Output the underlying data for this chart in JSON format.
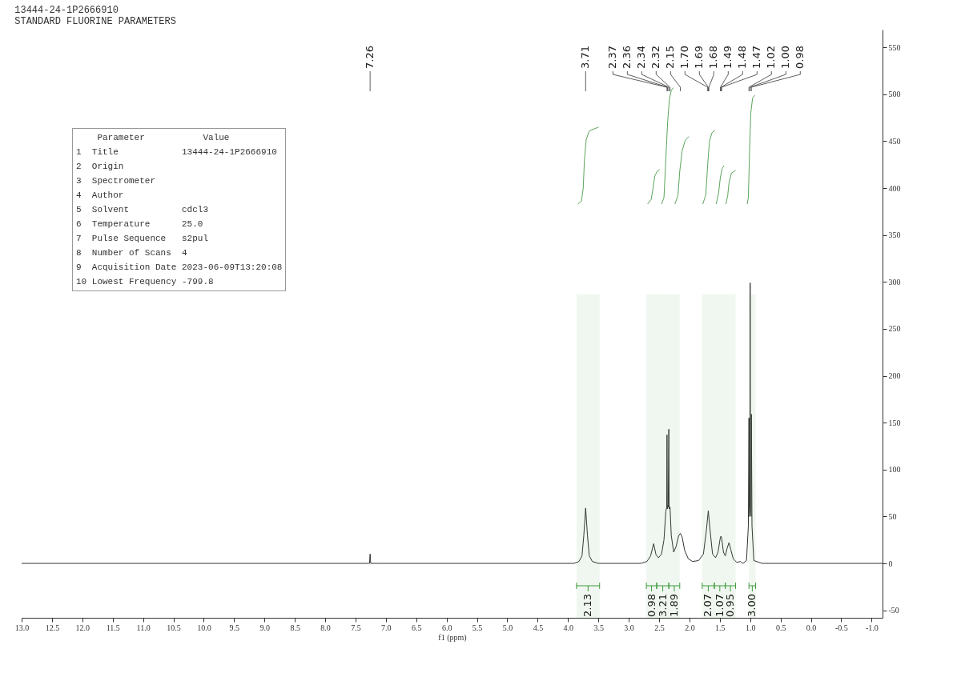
{
  "chart_data": {
    "type": "line",
    "title": "13444-24-1P2666910",
    "subtitle": "STANDARD FLUORINE PARAMETERS",
    "xlabel": "f1 (ppm)",
    "xlim": [
      13.0,
      -1.18
    ],
    "ylim": [
      -58,
      569
    ],
    "xticks": [
      {
        "value": 13,
        "label": "13.0"
      },
      {
        "value": 12.5,
        "label": "12.5"
      },
      {
        "value": 12,
        "label": "12.0"
      },
      {
        "value": 11.5,
        "label": "11.5"
      },
      {
        "value": 11,
        "label": "11.0"
      },
      {
        "value": 10.5,
        "label": "10.5"
      },
      {
        "value": 10,
        "label": "10.0"
      },
      {
        "value": 9.5,
        "label": "9.5"
      },
      {
        "value": 9,
        "label": "9.0"
      },
      {
        "value": 8.5,
        "label": "8.5"
      },
      {
        "value": 8,
        "label": "8.0"
      },
      {
        "value": 7.5,
        "label": "7.5"
      },
      {
        "value": 7,
        "label": "7.0"
      },
      {
        "value": 6.5,
        "label": "6.5"
      },
      {
        "value": 6,
        "label": "6.0"
      },
      {
        "value": 5.5,
        "label": "5.5"
      },
      {
        "value": 5,
        "label": "5.0"
      },
      {
        "value": 4.5,
        "label": "4.5"
      },
      {
        "value": 4,
        "label": "4.0"
      },
      {
        "value": 3.5,
        "label": "3.5"
      },
      {
        "value": 3,
        "label": "3.0"
      },
      {
        "value": 2.5,
        "label": "2.5"
      },
      {
        "value": 2,
        "label": "2.0"
      },
      {
        "value": 1.5,
        "label": "1.5"
      },
      {
        "value": 1,
        "label": "1.0"
      },
      {
        "value": 0.5,
        "label": "0.5"
      },
      {
        "value": 0,
        "label": "0.0"
      },
      {
        "value": -0.5,
        "label": "-0.5"
      },
      {
        "value": -1,
        "label": "-1.0"
      }
    ],
    "yticks": [
      -50,
      0,
      50,
      100,
      150,
      200,
      250,
      300,
      350,
      400,
      450,
      500,
      550
    ],
    "series": [
      {
        "color": "#333333",
        "x": [
          13.0,
          7.4,
          7.27,
          7.26,
          7.25,
          7.1,
          3.9,
          3.82,
          3.77,
          3.74,
          3.71,
          3.68,
          3.65,
          3.6,
          3.5,
          2.8,
          2.7,
          2.64,
          2.59,
          2.55,
          2.51,
          2.46,
          2.42,
          2.39,
          2.375,
          2.37,
          2.365,
          2.355,
          2.35,
          2.34,
          2.335,
          2.32,
          2.3,
          2.26,
          2.22,
          2.18,
          2.15,
          2.12,
          2.08,
          2.02,
          1.95,
          1.85,
          1.77,
          1.72,
          1.69,
          1.66,
          1.62,
          1.57,
          1.53,
          1.5,
          1.49,
          1.48,
          1.47,
          1.44,
          1.41,
          1.38,
          1.35,
          1.32,
          1.28,
          1.22,
          1.16,
          1.12,
          1.06,
          1.03,
          1.02,
          1.015,
          1.005,
          1.0,
          0.995,
          0.985,
          0.98,
          0.97,
          0.94,
          0.85,
          0.8,
          -1.18
        ],
        "values": [
          0,
          0,
          0,
          10,
          0,
          0,
          0,
          2,
          8,
          30,
          59,
          30,
          8,
          2,
          0,
          0,
          2,
          8,
          21,
          9,
          6,
          10,
          25,
          55,
          60,
          137,
          58,
          62,
          60,
          143,
          58,
          60,
          30,
          12,
          18,
          29,
          32,
          28,
          14,
          5,
          2,
          3,
          10,
          36,
          56,
          35,
          10,
          6,
          12,
          24,
          28,
          29,
          27,
          12,
          8,
          16,
          22,
          15,
          5,
          1,
          2,
          0,
          3,
          40,
          155,
          50,
          60,
          299,
          60,
          50,
          159,
          40,
          3,
          1,
          0,
          0
        ]
      },
      {
        "color": "#5aa55a",
        "x": [
          3.84,
          3.78,
          3.75,
          3.73,
          3.7,
          3.65,
          3.5
        ],
        "values": [
          383,
          386,
          400,
          430,
          452,
          461,
          465
        ]
      },
      {
        "color": "#5aa55a",
        "x": [
          2.69,
          2.63,
          2.6,
          2.57,
          2.53,
          2.49
        ],
        "values": [
          383,
          388,
          400,
          413,
          418,
          420
        ]
      },
      {
        "color": "#5aa55a",
        "x": [
          2.46,
          2.42,
          2.39,
          2.36,
          2.33,
          2.3,
          2.27
        ],
        "values": [
          383,
          390,
          430,
          470,
          495,
          504,
          507
        ]
      },
      {
        "color": "#5aa55a",
        "x": [
          2.24,
          2.19,
          2.16,
          2.12,
          2.07,
          2.01
        ],
        "values": [
          383,
          392,
          418,
          440,
          451,
          455
        ]
      },
      {
        "color": "#5aa55a",
        "x": [
          1.78,
          1.73,
          1.7,
          1.67,
          1.63,
          1.58
        ],
        "values": [
          383,
          393,
          425,
          450,
          459,
          462
        ]
      },
      {
        "color": "#5aa55a",
        "x": [
          1.56,
          1.52,
          1.49,
          1.46,
          1.43
        ],
        "values": [
          383,
          395,
          412,
          421,
          424
        ]
      },
      {
        "color": "#5aa55a",
        "x": [
          1.4,
          1.37,
          1.35,
          1.31,
          1.24
        ],
        "values": [
          383,
          392,
          405,
          416,
          419
        ]
      },
      {
        "color": "#5aa55a",
        "x": [
          1.05,
          1.03,
          1.01,
          0.99,
          0.96,
          0.92
        ],
        "values": [
          383,
          390,
          440,
          480,
          496,
          499
        ]
      }
    ],
    "bands": [
      {
        "axis": "x",
        "from": 3.86,
        "to": 3.48,
        "label": "2.13",
        "color": "#3c9a3c"
      },
      {
        "axis": "x",
        "from": 2.71,
        "to": 2.54,
        "label": "0.98",
        "color": "#3c9a3c"
      },
      {
        "axis": "x",
        "from": 2.54,
        "to": 2.34,
        "label": "3.21",
        "color": "#3c9a3c"
      },
      {
        "axis": "x",
        "from": 2.34,
        "to": 2.16,
        "label": "1.89",
        "color": "#3c9a3c"
      },
      {
        "axis": "x",
        "from": 1.79,
        "to": 1.59,
        "label": "2.07",
        "color": "#3c9a3c"
      },
      {
        "axis": "x",
        "from": 1.59,
        "to": 1.41,
        "label": "1.07",
        "color": "#3c9a3c"
      },
      {
        "axis": "x",
        "from": 1.41,
        "to": 1.24,
        "label": "0.95",
        "color": "#3c9a3c"
      },
      {
        "axis": "x",
        "from": 1.02,
        "to": 0.91,
        "label": "3.00",
        "color": "#3c9a3c"
      }
    ],
    "annotations": [
      {
        "text": "7.26",
        "x": 7.26
      },
      {
        "text": "3.71",
        "x": 3.71
      },
      {
        "text": "2.37",
        "x": 2.37
      },
      {
        "text": "2.36",
        "x": 2.36
      },
      {
        "text": "2.34",
        "x": 2.34
      },
      {
        "text": "2.32",
        "x": 2.32
      },
      {
        "text": "2.15",
        "x": 2.15
      },
      {
        "text": "1.70",
        "x": 1.7
      },
      {
        "text": "1.69",
        "x": 1.69
      },
      {
        "text": "1.68",
        "x": 1.68
      },
      {
        "text": "1.49",
        "x": 1.49
      },
      {
        "text": "1.48",
        "x": 1.48
      },
      {
        "text": "1.47",
        "x": 1.47
      },
      {
        "text": "1.02",
        "x": 1.02
      },
      {
        "text": "1.00",
        "x": 1.0
      },
      {
        "text": "0.98",
        "x": 0.98
      },
      "    Parameter           Value",
      "1  Title            13444-24-1P2666910",
      "2  Origin",
      "3  Spectrometer",
      "4  Author",
      "5  Solvent          cdcl3",
      "6  Temperature      25.0",
      "7  Pulse Sequence   s2pul",
      "8  Number of Scans  4",
      "9  Acquisition Date 2023-06-09T13:20:08",
      "10 Lowest Frequency -799.8"
    ]
  }
}
